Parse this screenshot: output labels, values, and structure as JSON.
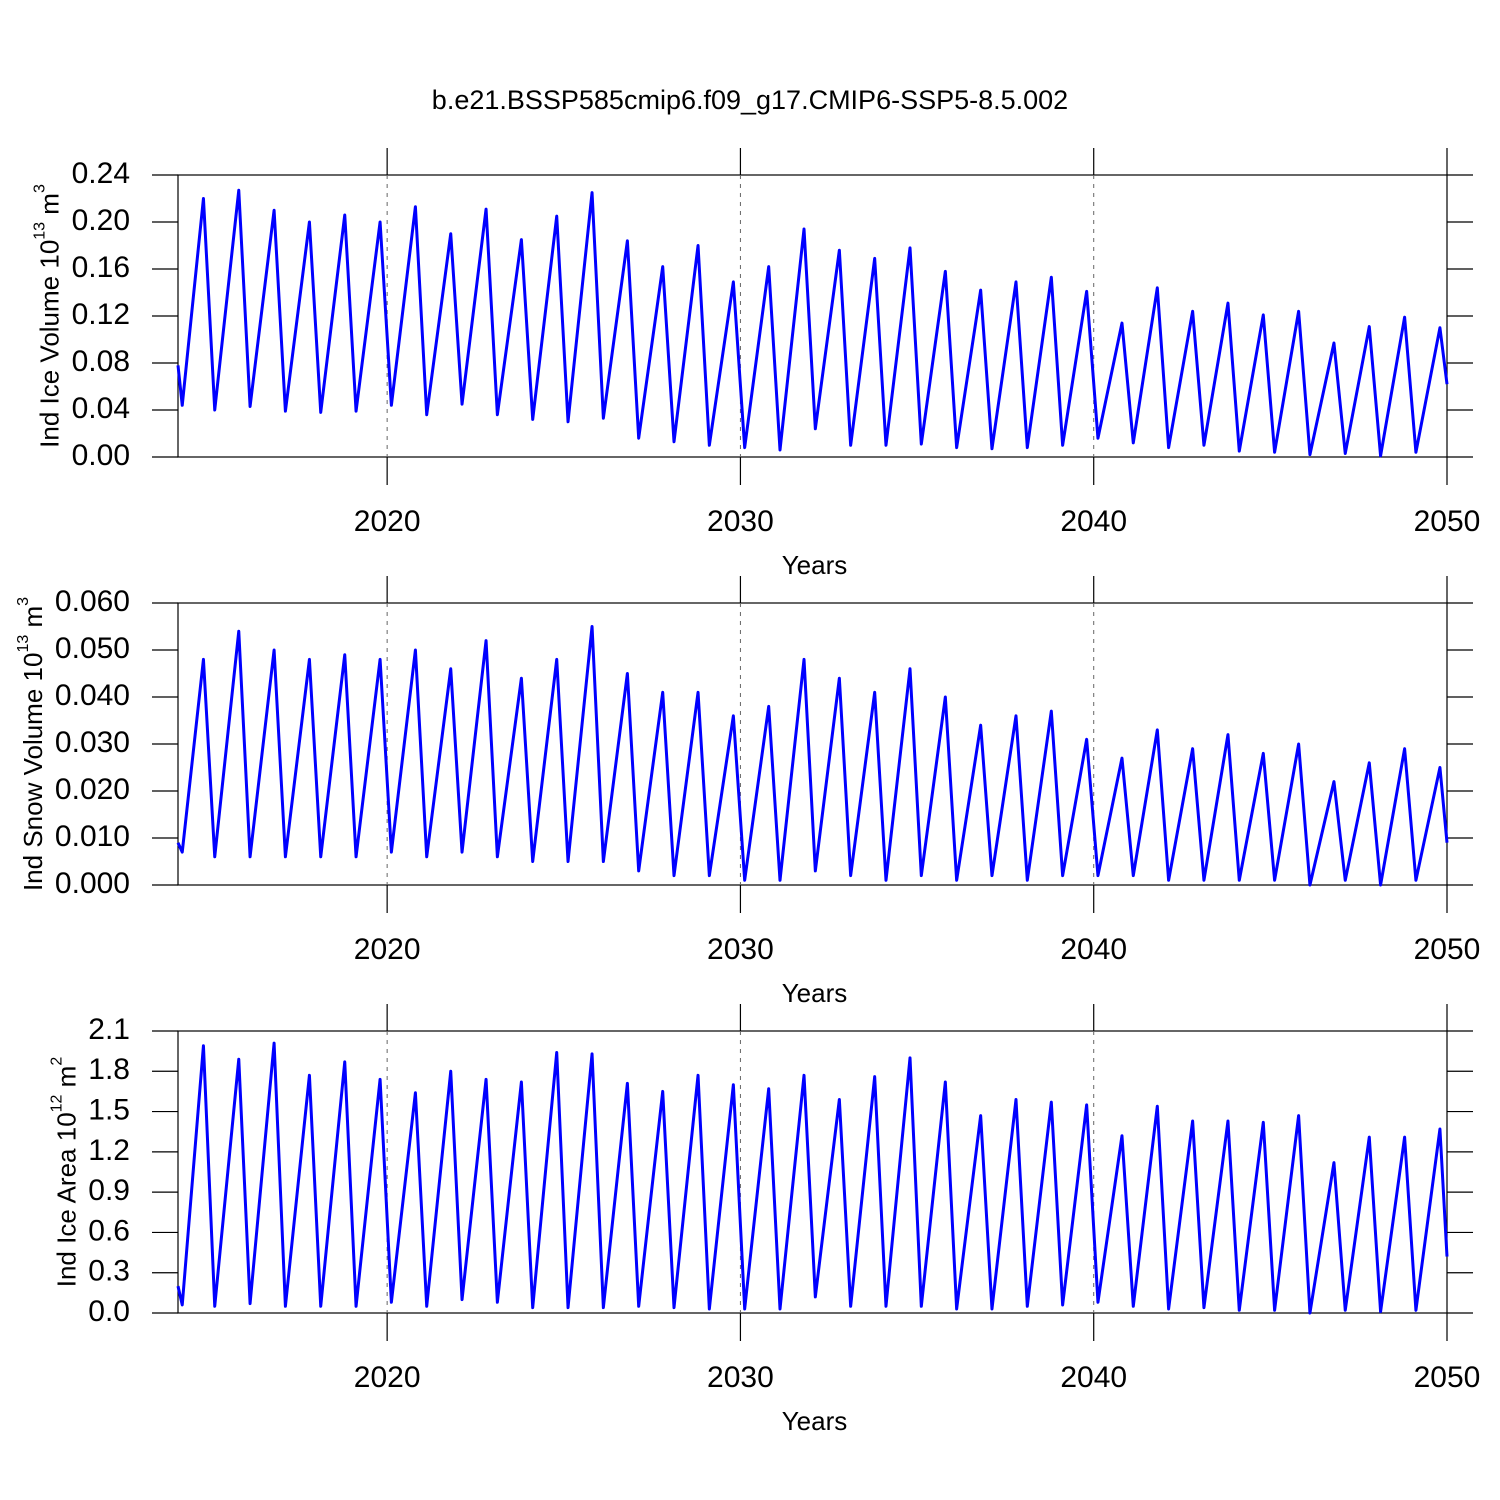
{
  "chart_data": [
    {
      "type": "line",
      "title": "b.e21.BSSP585cmip6.f09_g17.CMIP6-SSP5-8.5.002",
      "ylabel": [
        "Ind Ice Volume 10",
        "13",
        " m",
        "3"
      ],
      "xlabel": "Years",
      "color": "#0000ff",
      "grid": "x",
      "xlim": [
        2014.08,
        2050
      ],
      "xticks": [
        2020,
        2030,
        2040,
        2050
      ],
      "ylim": [
        0,
        0.24
      ],
      "yticks": [
        {
          "value": 0,
          "label": "0.00"
        },
        {
          "value": 0.04,
          "label": "0.04"
        },
        {
          "value": 0.08,
          "label": "0.08"
        },
        {
          "value": 0.12,
          "label": "0.12"
        },
        {
          "value": 0.16,
          "label": "0.16"
        },
        {
          "value": 0.2,
          "label": "0.20"
        },
        {
          "value": 0.24,
          "label": "0.24"
        }
      ],
      "x": [
        2014.08,
        2014.2,
        2014.8,
        2015.12,
        2015.8,
        2016.12,
        2016.8,
        2017.12,
        2017.8,
        2018.12,
        2018.8,
        2019.12,
        2019.8,
        2020.12,
        2020.8,
        2021.12,
        2021.8,
        2022.12,
        2022.8,
        2023.12,
        2023.8,
        2024.12,
        2024.8,
        2025.12,
        2025.8,
        2026.12,
        2026.8,
        2027.12,
        2027.8,
        2028.12,
        2028.8,
        2029.12,
        2029.8,
        2030.12,
        2030.8,
        2031.12,
        2031.8,
        2032.12,
        2032.8,
        2033.12,
        2033.8,
        2034.12,
        2034.8,
        2035.12,
        2035.8,
        2036.12,
        2036.8,
        2037.12,
        2037.8,
        2038.12,
        2038.8,
        2039.12,
        2039.8,
        2040.12,
        2040.8,
        2041.12,
        2041.8,
        2042.12,
        2042.8,
        2043.12,
        2043.8,
        2044.12,
        2044.8,
        2045.12,
        2045.8,
        2046.12,
        2046.8,
        2047.12,
        2047.8,
        2048.12,
        2048.8,
        2049.12,
        2049.8,
        2050
      ],
      "values": [
        0.078,
        0.044,
        0.22,
        0.04,
        0.227,
        0.043,
        0.21,
        0.039,
        0.2,
        0.038,
        0.206,
        0.039,
        0.2,
        0.044,
        0.213,
        0.036,
        0.19,
        0.045,
        0.211,
        0.036,
        0.185,
        0.032,
        0.205,
        0.03,
        0.225,
        0.033,
        0.184,
        0.016,
        0.162,
        0.013,
        0.18,
        0.01,
        0.149,
        0.008,
        0.162,
        0.006,
        0.194,
        0.024,
        0.176,
        0.01,
        0.169,
        0.01,
        0.178,
        0.011,
        0.158,
        0.008,
        0.142,
        0.007,
        0.149,
        0.008,
        0.153,
        0.01,
        0.141,
        0.016,
        0.114,
        0.012,
        0.144,
        0.008,
        0.124,
        0.01,
        0.131,
        0.005,
        0.121,
        0.004,
        0.124,
        0.002,
        0.097,
        0.003,
        0.111,
        0.001,
        0.119,
        0.004,
        0.11,
        0.062
      ]
    },
    {
      "type": "line",
      "ylabel": [
        "Ind Snow Volume 10",
        "13",
        " m",
        "3"
      ],
      "xlabel": "Years",
      "color": "#0000ff",
      "grid": "x",
      "xlim": [
        2014.08,
        2050
      ],
      "xticks": [
        2020,
        2030,
        2040,
        2050
      ],
      "ylim": [
        0,
        0.06
      ],
      "yticks": [
        {
          "value": 0,
          "label": "0.000"
        },
        {
          "value": 0.01,
          "label": "0.010"
        },
        {
          "value": 0.02,
          "label": "0.020"
        },
        {
          "value": 0.03,
          "label": "0.030"
        },
        {
          "value": 0.04,
          "label": "0.040"
        },
        {
          "value": 0.05,
          "label": "0.050"
        },
        {
          "value": 0.06,
          "label": "0.060"
        }
      ],
      "x": [
        2014.08,
        2014.2,
        2014.8,
        2015.12,
        2015.8,
        2016.12,
        2016.8,
        2017.12,
        2017.8,
        2018.12,
        2018.8,
        2019.12,
        2019.8,
        2020.12,
        2020.8,
        2021.12,
        2021.8,
        2022.12,
        2022.8,
        2023.12,
        2023.8,
        2024.12,
        2024.8,
        2025.12,
        2025.8,
        2026.12,
        2026.8,
        2027.12,
        2027.8,
        2028.12,
        2028.8,
        2029.12,
        2029.8,
        2030.12,
        2030.8,
        2031.12,
        2031.8,
        2032.12,
        2032.8,
        2033.12,
        2033.8,
        2034.12,
        2034.8,
        2035.12,
        2035.8,
        2036.12,
        2036.8,
        2037.12,
        2037.8,
        2038.12,
        2038.8,
        2039.12,
        2039.8,
        2040.12,
        2040.8,
        2041.12,
        2041.8,
        2042.12,
        2042.8,
        2043.12,
        2043.8,
        2044.12,
        2044.8,
        2045.12,
        2045.8,
        2046.12,
        2046.8,
        2047.12,
        2047.8,
        2048.12,
        2048.8,
        2049.12,
        2049.8,
        2050
      ],
      "values": [
        0.009,
        0.007,
        0.048,
        0.006,
        0.054,
        0.006,
        0.05,
        0.006,
        0.048,
        0.006,
        0.049,
        0.006,
        0.048,
        0.007,
        0.05,
        0.006,
        0.046,
        0.007,
        0.052,
        0.006,
        0.044,
        0.005,
        0.048,
        0.005,
        0.055,
        0.005,
        0.045,
        0.003,
        0.041,
        0.002,
        0.041,
        0.002,
        0.036,
        0.001,
        0.038,
        0.001,
        0.048,
        0.003,
        0.044,
        0.002,
        0.041,
        0.001,
        0.046,
        0.002,
        0.04,
        0.001,
        0.034,
        0.002,
        0.036,
        0.001,
        0.037,
        0.002,
        0.031,
        0.002,
        0.027,
        0.002,
        0.033,
        0.001,
        0.029,
        0.001,
        0.032,
        0.001,
        0.028,
        0.001,
        0.03,
        0,
        0.022,
        0.001,
        0.026,
        0,
        0.029,
        0.001,
        0.025,
        0.009
      ]
    },
    {
      "type": "line",
      "ylabel": [
        "Ind Ice Area 10",
        "12",
        " m",
        "2"
      ],
      "xlabel": "Years",
      "color": "#0000ff",
      "grid": "x",
      "xlim": [
        2014.08,
        2050
      ],
      "xticks": [
        2020,
        2030,
        2040,
        2050
      ],
      "ylim": [
        0,
        2.1
      ],
      "yticks": [
        {
          "value": 0,
          "label": "0.0"
        },
        0.3,
        0.6,
        0.9,
        1.2,
        1.5,
        1.8,
        2.1
      ],
      "x": [
        2014.08,
        2014.2,
        2014.8,
        2015.12,
        2015.8,
        2016.12,
        2016.8,
        2017.12,
        2017.8,
        2018.12,
        2018.8,
        2019.12,
        2019.8,
        2020.12,
        2020.8,
        2021.12,
        2021.8,
        2022.12,
        2022.8,
        2023.12,
        2023.8,
        2024.12,
        2024.8,
        2025.12,
        2025.8,
        2026.12,
        2026.8,
        2027.12,
        2027.8,
        2028.12,
        2028.8,
        2029.12,
        2029.8,
        2030.12,
        2030.8,
        2031.12,
        2031.8,
        2032.12,
        2032.8,
        2033.12,
        2033.8,
        2034.12,
        2034.8,
        2035.12,
        2035.8,
        2036.12,
        2036.8,
        2037.12,
        2037.8,
        2038.12,
        2038.8,
        2039.12,
        2039.8,
        2040.12,
        2040.8,
        2041.12,
        2041.8,
        2042.12,
        2042.8,
        2043.12,
        2043.8,
        2044.12,
        2044.8,
        2045.12,
        2045.8,
        2046.12,
        2046.8,
        2047.12,
        2047.8,
        2048.12,
        2048.8,
        2049.12,
        2049.8,
        2050
      ],
      "values": [
        0.2,
        0.06,
        1.99,
        0.05,
        1.89,
        0.07,
        2.01,
        0.05,
        1.77,
        0.05,
        1.87,
        0.05,
        1.74,
        0.08,
        1.64,
        0.05,
        1.8,
        0.1,
        1.74,
        0.08,
        1.72,
        0.04,
        1.94,
        0.04,
        1.93,
        0.04,
        1.71,
        0.05,
        1.65,
        0.04,
        1.77,
        0.03,
        1.7,
        0.03,
        1.67,
        0.03,
        1.77,
        0.12,
        1.59,
        0.05,
        1.76,
        0.05,
        1.9,
        0.05,
        1.72,
        0.03,
        1.47,
        0.03,
        1.59,
        0.05,
        1.57,
        0.06,
        1.55,
        0.08,
        1.32,
        0.05,
        1.54,
        0.03,
        1.43,
        0.04,
        1.43,
        0.02,
        1.42,
        0.02,
        1.47,
        0,
        1.12,
        0.02,
        1.31,
        0.01,
        1.31,
        0.02,
        1.37,
        0.42
      ]
    }
  ]
}
